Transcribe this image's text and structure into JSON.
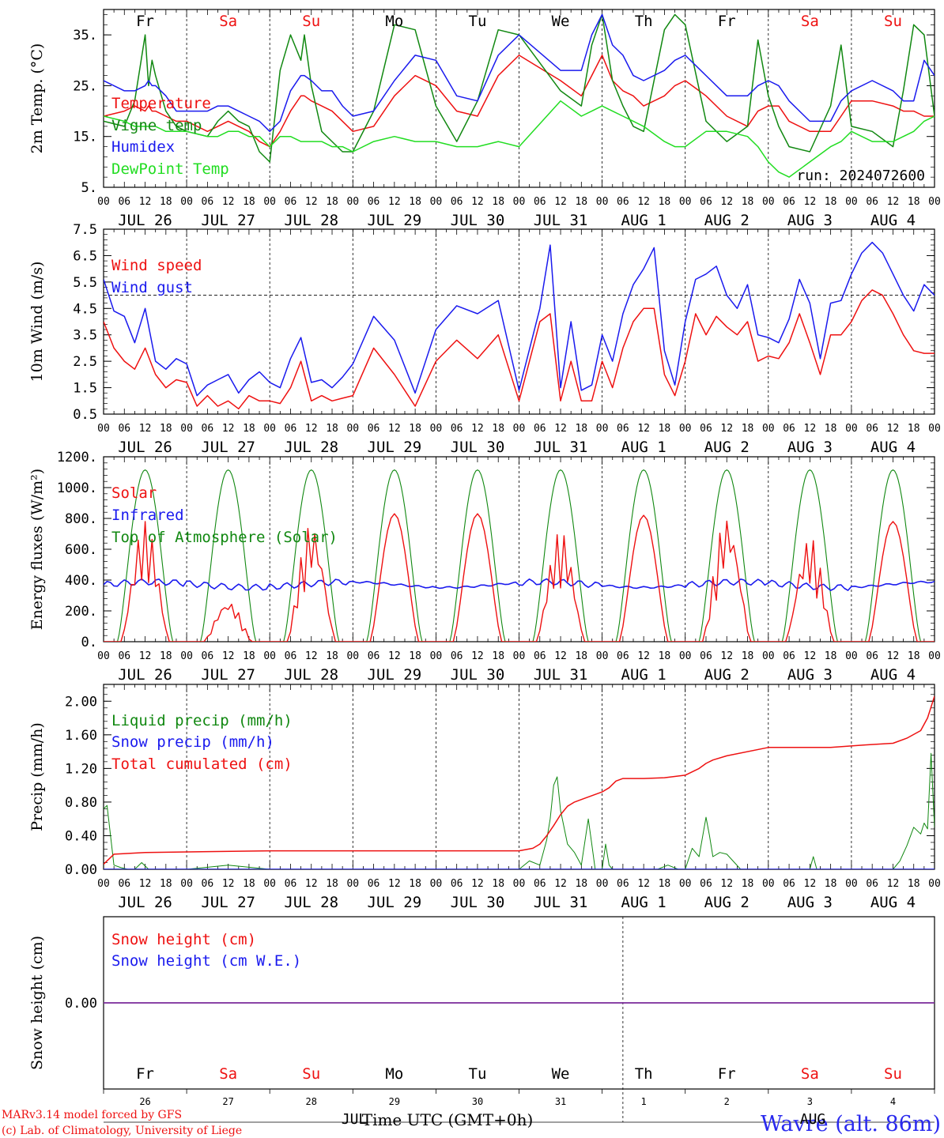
{
  "figure": {
    "day_names": [
      "Fr",
      "Sa",
      "Su",
      "Mo",
      "Tu",
      "We",
      "Th",
      "Fr",
      "Sa",
      "Su"
    ],
    "weekend_days": [
      1,
      2,
      8,
      9
    ],
    "hour_labels": [
      "00",
      "06",
      "12",
      "18"
    ],
    "last_hour_label": "00",
    "date_labels": [
      "JUL 26",
      "JUL 27",
      "JUL 28",
      "JUL 29",
      "JUL 30",
      "JUL 31",
      "AUG  1",
      "AUG  2",
      "AUG  3",
      "AUG  4"
    ],
    "bottom_day_numbers": [
      "26",
      "27",
      "28",
      "29",
      "30",
      "31",
      "1",
      "2",
      "3",
      "4"
    ],
    "bottom_month_left": "JUL",
    "bottom_month_right": "AUG",
    "xlabel": "Time UTC (GMT+0h)",
    "run_label": "run: 2024072600",
    "credit_line1": "MARv3.14 model forced by GFS",
    "credit_line2": "(c) Lab. of Climatology, University of Liege",
    "station_label": "Wavre (alt. 86m)",
    "colors": {
      "red": "#ee1111",
      "dark_green": "#118811",
      "blue": "#1a1aee",
      "light_green": "#22dd22",
      "navy": "#0000cc",
      "purple": "#7a2a9a"
    }
  },
  "chart_data": [
    {
      "type": "line",
      "ylabel": "2m Temp. (°C)",
      "ylim": [
        5,
        40
      ],
      "yticks": [
        "5.",
        "15.",
        "25.",
        "35."
      ],
      "hours": [
        0,
        6,
        9,
        12,
        13,
        14,
        15,
        18,
        21,
        24,
        30,
        33,
        36,
        39,
        42,
        45,
        48,
        51,
        54,
        57,
        58,
        60,
        63,
        66,
        69,
        72,
        78,
        84,
        90,
        96,
        102,
        108,
        114,
        120,
        132,
        138,
        141,
        144,
        147,
        150,
        153,
        156,
        162,
        165,
        168,
        174,
        180,
        186,
        189,
        192,
        195,
        198,
        204,
        210,
        213,
        216,
        222,
        228,
        231,
        234,
        237,
        240
      ],
      "series": [
        {
          "name": "Temperature",
          "color": "#ee1111",
          "values": [
            19,
            20,
            21,
            20,
            21,
            20,
            20,
            19,
            18,
            18,
            16,
            17,
            18,
            17,
            16,
            14,
            13,
            16,
            20,
            23,
            23,
            22,
            21,
            20,
            18,
            16,
            17,
            23,
            27,
            25,
            20,
            19,
            27,
            31,
            26,
            23,
            27,
            31,
            26,
            24,
            23,
            21,
            23,
            25,
            26,
            23,
            19,
            17,
            20,
            21,
            21,
            18,
            16,
            16,
            19,
            22,
            22,
            21,
            20,
            20,
            19,
            19
          ]
        },
        {
          "name": "Vigne temp",
          "color": "#118811",
          "values": [
            18,
            17,
            22,
            35,
            25,
            30,
            27,
            20,
            17,
            16,
            15,
            18,
            20,
            18,
            17,
            12,
            10,
            28,
            35,
            30,
            35,
            25,
            16,
            14,
            12,
            12,
            20,
            37,
            36,
            21,
            14,
            22,
            36,
            35,
            24,
            21,
            33,
            39,
            26,
            21,
            17,
            16,
            36,
            39,
            37,
            18,
            14,
            17,
            34,
            23,
            17,
            13,
            12,
            21,
            33,
            17,
            16,
            13,
            24,
            37,
            35,
            19
          ]
        },
        {
          "name": "Humidex",
          "color": "#1a1aee",
          "values": [
            26,
            24,
            24,
            25,
            26,
            25,
            25,
            23,
            20,
            20,
            20,
            21,
            21,
            20,
            19,
            18,
            16,
            18,
            24,
            27,
            27,
            26,
            24,
            24,
            21,
            19,
            20,
            26,
            31,
            30,
            23,
            22,
            31,
            35,
            28,
            28,
            35,
            39,
            33,
            31,
            27,
            26,
            28,
            30,
            31,
            27,
            23,
            23,
            25,
            26,
            25,
            22,
            18,
            18,
            22,
            24,
            26,
            24,
            22,
            22,
            30,
            27
          ]
        },
        {
          "name": "DewPoint Temp",
          "color": "#22dd22",
          "values": [
            19,
            18,
            17,
            17,
            17,
            17,
            17,
            16,
            16,
            16,
            15,
            15,
            16,
            16,
            15,
            15,
            13,
            15,
            15,
            14,
            14,
            14,
            14,
            13,
            13,
            12,
            14,
            15,
            14,
            14,
            13,
            13,
            14,
            13,
            22,
            19,
            20,
            21,
            20,
            19,
            18,
            17,
            14,
            13,
            13,
            16,
            16,
            15,
            13,
            10,
            8,
            7,
            10,
            13,
            14,
            16,
            14,
            14,
            15,
            16,
            18,
            19
          ]
        }
      ]
    },
    {
      "type": "line",
      "ylabel": "10m Wind (m/s)",
      "ylim": [
        0.5,
        7.5
      ],
      "yticks": [
        "0.5",
        "1.5",
        "2.5",
        "3.5",
        "4.5",
        "5.5",
        "6.5",
        "7.5"
      ],
      "reference_line": 5.0,
      "hours": [
        0,
        3,
        6,
        9,
        12,
        15,
        18,
        21,
        24,
        27,
        30,
        33,
        36,
        39,
        42,
        45,
        48,
        51,
        54,
        57,
        60,
        63,
        66,
        69,
        72,
        78,
        84,
        90,
        96,
        102,
        108,
        114,
        120,
        126,
        129,
        132,
        135,
        138,
        141,
        144,
        147,
        150,
        153,
        156,
        159,
        162,
        165,
        168,
        171,
        174,
        177,
        180,
        183,
        186,
        189,
        192,
        195,
        198,
        201,
        204,
        207,
        210,
        213,
        216,
        219,
        222,
        225,
        228,
        231,
        234,
        237,
        240
      ],
      "series": [
        {
          "name": "Wind speed",
          "color": "#ee1111",
          "values": [
            4.0,
            3.0,
            2.5,
            2.2,
            3.0,
            2.0,
            1.5,
            1.8,
            1.7,
            0.8,
            1.2,
            0.8,
            1.0,
            0.7,
            1.2,
            1.0,
            1.0,
            0.9,
            1.5,
            2.5,
            1.0,
            1.2,
            1.0,
            1.1,
            1.2,
            3.0,
            2.0,
            0.8,
            2.5,
            3.3,
            2.6,
            3.5,
            1.0,
            4.0,
            4.3,
            1.0,
            2.5,
            1.0,
            1.0,
            2.5,
            1.5,
            3.0,
            4.0,
            4.5,
            4.5,
            2.0,
            1.2,
            2.5,
            4.3,
            3.5,
            4.2,
            3.8,
            3.5,
            4.0,
            2.5,
            2.7,
            2.6,
            3.2,
            4.3,
            3.2,
            2.0,
            3.5,
            3.5,
            4.0,
            4.8,
            5.2,
            5.0,
            4.3,
            3.5,
            2.9,
            2.8,
            2.8
          ]
        },
        {
          "name": "Wind gust",
          "color": "#1a1aee",
          "values": [
            5.6,
            4.4,
            4.2,
            3.2,
            4.5,
            2.5,
            2.2,
            2.6,
            2.4,
            1.2,
            1.6,
            1.8,
            2.0,
            1.3,
            1.8,
            2.1,
            1.7,
            1.5,
            2.6,
            3.4,
            1.7,
            1.8,
            1.5,
            1.9,
            2.4,
            4.2,
            3.3,
            1.3,
            3.7,
            4.6,
            4.3,
            4.8,
            1.4,
            4.5,
            6.9,
            1.5,
            4.0,
            1.4,
            1.6,
            3.5,
            2.5,
            4.3,
            5.4,
            6.0,
            6.8,
            2.9,
            1.6,
            4.0,
            5.6,
            5.8,
            6.1,
            5.0,
            4.5,
            5.4,
            3.5,
            3.4,
            3.2,
            4.1,
            5.6,
            4.7,
            2.6,
            4.7,
            4.8,
            5.8,
            6.6,
            7.0,
            6.6,
            5.8,
            5.0,
            4.4,
            5.4,
            5.0
          ]
        }
      ]
    },
    {
      "type": "line",
      "ylabel": "Energy fluxes (W/m²)",
      "ylim": [
        0,
        1200
      ],
      "yticks": [
        "0.",
        "200.",
        "400.",
        "600.",
        "800.",
        "1000.",
        "1200."
      ],
      "solar_daily_peaks": [
        780,
        270,
        770,
        830,
        830,
        720,
        820,
        820,
        680,
        780
      ],
      "toa_peak": 1115,
      "infrared_base": 370,
      "series": [
        {
          "name": "Solar",
          "color": "#ee1111"
        },
        {
          "name": "Infrared",
          "color": "#1a1aee"
        },
        {
          "name": "Top of Atmosphere (Solar)",
          "color": "#118811"
        }
      ]
    },
    {
      "type": "line",
      "ylabel": "Precip (mm/h)",
      "ylim": [
        0,
        2.2
      ],
      "yticks": [
        "0.00",
        "0.40",
        "0.80",
        "1.20",
        "1.60",
        "2.00"
      ],
      "series": [
        {
          "name": "Liquid precip (mm/h)",
          "color": "#118811",
          "hours": [
            0,
            1,
            3,
            5,
            7,
            9,
            11,
            13,
            15,
            24,
            36,
            48,
            60,
            72,
            84,
            96,
            108,
            120,
            123,
            126,
            128,
            129,
            130,
            131,
            132,
            134,
            136,
            138,
            140,
            141,
            142,
            144,
            145,
            146,
            147,
            148,
            150,
            160,
            163,
            166,
            168,
            170,
            171,
            172,
            174,
            175,
            176,
            178,
            180,
            184,
            186,
            188,
            200,
            204,
            205,
            206,
            212,
            216,
            222,
            228,
            230,
            232,
            234,
            236,
            237,
            238,
            239,
            240
          ],
          "values": [
            0.72,
            0.76,
            0.05,
            0.02,
            0.0,
            0.0,
            0.08,
            0.0,
            0.0,
            0.0,
            0.05,
            0.0,
            0.0,
            0.0,
            0.0,
            0.0,
            0.0,
            0.0,
            0.1,
            0.05,
            0.35,
            0.6,
            1.0,
            1.1,
            0.7,
            0.3,
            0.2,
            0.05,
            0.6,
            0.3,
            0.0,
            0.0,
            0.3,
            0.05,
            0.0,
            0.0,
            0.0,
            0.0,
            0.05,
            0.0,
            0.0,
            0.25,
            0.2,
            0.15,
            0.62,
            0.4,
            0.15,
            0.2,
            0.18,
            0.0,
            0.0,
            0.0,
            0.0,
            0.0,
            0.15,
            0.0,
            0.0,
            0.0,
            0.0,
            0.0,
            0.1,
            0.28,
            0.5,
            0.42,
            0.55,
            0.48,
            1.38,
            0.5
          ]
        },
        {
          "name": "Snow precip (mm/h)",
          "color": "#1a1aee",
          "hours": [
            0,
            240
          ],
          "values": [
            0,
            0
          ]
        },
        {
          "name": "Total cumulated (cm)",
          "color": "#ee1111",
          "hours": [
            0,
            3,
            12,
            48,
            96,
            120,
            124,
            126,
            128,
            130,
            132,
            134,
            136,
            138,
            144,
            146,
            148,
            150,
            156,
            162,
            168,
            172,
            174,
            176,
            180,
            192,
            210,
            220,
            228,
            232,
            236,
            238,
            240
          ],
          "values": [
            0.06,
            0.18,
            0.2,
            0.22,
            0.22,
            0.22,
            0.25,
            0.3,
            0.4,
            0.52,
            0.65,
            0.75,
            0.8,
            0.83,
            0.92,
            0.97,
            1.05,
            1.08,
            1.08,
            1.09,
            1.12,
            1.2,
            1.26,
            1.3,
            1.35,
            1.45,
            1.45,
            1.48,
            1.5,
            1.56,
            1.65,
            1.8,
            2.06
          ]
        }
      ]
    },
    {
      "type": "line",
      "ylabel": "Snow height (cm)",
      "ylim": [
        -1,
        1
      ],
      "yticks": [
        "0.00"
      ],
      "series": [
        {
          "name": "Snow height (cm)",
          "color": "#ee1111",
          "hours": [
            0,
            240
          ],
          "values": [
            0,
            0
          ]
        },
        {
          "name": "Snow height (cm W.E.)",
          "color": "#1a1aee",
          "hours": [
            0,
            240
          ],
          "values": [
            0,
            0
          ]
        }
      ]
    }
  ]
}
